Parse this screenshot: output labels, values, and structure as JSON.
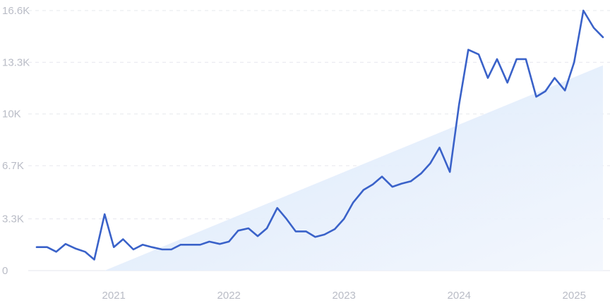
{
  "chart_data": {
    "type": "line",
    "title": "",
    "xlabel": "",
    "ylabel": "",
    "ylim": [
      0,
      16600
    ],
    "grid": true,
    "y_ticks": [
      {
        "value": 0,
        "label": "0"
      },
      {
        "value": 3300,
        "label": "3.3K"
      },
      {
        "value": 6700,
        "label": "6.7K"
      },
      {
        "value": 10000,
        "label": "10K"
      },
      {
        "value": 13300,
        "label": "13.3K"
      },
      {
        "value": 16600,
        "label": "16.6K"
      }
    ],
    "x_ticks": [
      {
        "value": 2021.0,
        "label": "2021"
      },
      {
        "value": 2022.0,
        "label": "2022"
      },
      {
        "value": 2023.0,
        "label": "2023"
      },
      {
        "value": 2024.0,
        "label": "2024"
      },
      {
        "value": 2025.0,
        "label": "2025"
      }
    ],
    "xlim": [
      2020.33,
      2025.25
    ],
    "trend": {
      "x": [
        2020.92,
        2025.25
      ],
      "y": [
        0,
        13100
      ]
    },
    "series": [
      {
        "color": "#3a62c9",
        "x": [
          2020.33,
          2020.42,
          2020.5,
          2020.58,
          2020.67,
          2020.75,
          2020.83,
          2020.92,
          2021.0,
          2021.08,
          2021.17,
          2021.25,
          2021.33,
          2021.42,
          2021.5,
          2021.58,
          2021.67,
          2021.75,
          2021.83,
          2021.92,
          2022.0,
          2022.08,
          2022.17,
          2022.25,
          2022.33,
          2022.42,
          2022.5,
          2022.58,
          2022.67,
          2022.75,
          2022.83,
          2022.92,
          2023.0,
          2023.08,
          2023.17,
          2023.25,
          2023.33,
          2023.42,
          2023.5,
          2023.58,
          2023.67,
          2023.75,
          2023.83,
          2023.92,
          2024.0,
          2024.08,
          2024.17,
          2024.25,
          2024.33,
          2024.42,
          2024.5,
          2024.58,
          2024.67,
          2024.75,
          2024.83,
          2024.92,
          2025.0,
          2025.08,
          2025.17,
          2025.25
        ],
        "values": [
          1500,
          1500,
          1200,
          1700,
          1400,
          1200,
          700,
          3600,
          1500,
          2000,
          1350,
          1650,
          1500,
          1350,
          1350,
          1650,
          1650,
          1650,
          1850,
          1700,
          1850,
          2550,
          2700,
          2200,
          2700,
          4000,
          3300,
          2500,
          2500,
          2150,
          2300,
          2650,
          3300,
          4350,
          5150,
          5500,
          6000,
          5350,
          5550,
          5700,
          6200,
          6850,
          7850,
          6300,
          10600,
          14100,
          13800,
          12300,
          13500,
          12000,
          13500,
          13500,
          11100,
          11450,
          12300,
          11500,
          13300,
          16600,
          15500,
          14900
        ]
      }
    ]
  }
}
